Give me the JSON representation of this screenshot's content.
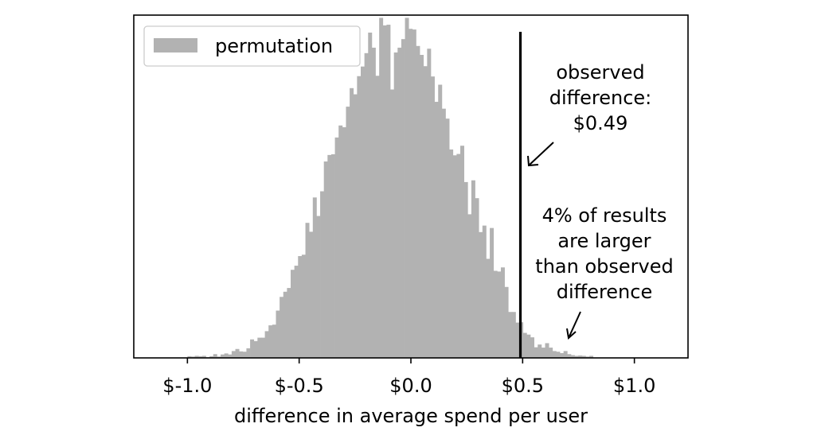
{
  "chart_data": {
    "type": "histogram",
    "xlabel": "difference in average spend per user",
    "ylabel": "",
    "xlim": [
      -1.24,
      1.24
    ],
    "ylim": [
      0,
      1.0
    ],
    "x_ticks": [
      -1.0,
      -0.5,
      0.0,
      0.5,
      1.0
    ],
    "x_tick_labels": [
      "$-1.0",
      "$-0.5",
      "$0.0",
      "$0.5",
      "$1.0"
    ],
    "show_y_ticks": false,
    "legend": {
      "placement": "top-left",
      "entries": [
        "permutation"
      ]
    },
    "colors": {
      "bars": "#b2b2b2",
      "observed_line": "#000000"
    },
    "bins": {
      "start": -1.0,
      "width": 0.0165,
      "heights": [
        0.005,
        0.004,
        0.006,
        0.005,
        0.006,
        0.002,
        0.005,
        0.011,
        0.004,
        0.01,
        0.013,
        0.01,
        0.02,
        0.026,
        0.019,
        0.018,
        0.028,
        0.054,
        0.049,
        0.059,
        0.059,
        0.078,
        0.095,
        0.097,
        0.138,
        0.178,
        0.193,
        0.204,
        0.257,
        0.269,
        0.297,
        0.301,
        0.394,
        0.368,
        0.468,
        0.414,
        0.486,
        0.573,
        0.592,
        0.594,
        0.643,
        0.678,
        0.673,
        0.733,
        0.787,
        0.769,
        0.822,
        0.85,
        0.889,
        0.949,
        0.905,
        0.823,
        0.992,
        0.97,
        0.972,
        0.783,
        0.891,
        0.905,
        0.93,
        0.992,
        0.96,
        0.958,
        0.91,
        0.884,
        0.851,
        0.902,
        0.821,
        0.747,
        0.797,
        0.727,
        0.698,
        0.608,
        0.591,
        0.595,
        0.619,
        0.513,
        0.419,
        0.518,
        0.466,
        0.367,
        0.386,
        0.289,
        0.379,
        0.254,
        0.252,
        0.264,
        0.207,
        0.134,
        0.134,
        0.103,
        0.104,
        0.073,
        0.068,
        0.06,
        0.031,
        0.039,
        0.03,
        0.043,
        0.03,
        0.02,
        0.018,
        0.014,
        0.02,
        0.011,
        0.008,
        0.006,
        0.007,
        0.006,
        0.004,
        0.006
      ]
    },
    "observed_difference": 0.49,
    "annotations": [
      {
        "lines": [
          "observed",
          "difference:",
          "$0.49"
        ],
        "points_to": "observed-line"
      },
      {
        "lines": [
          "4% of results",
          "are larger",
          "than observed",
          "difference"
        ],
        "points_to": "right-tail"
      }
    ]
  }
}
